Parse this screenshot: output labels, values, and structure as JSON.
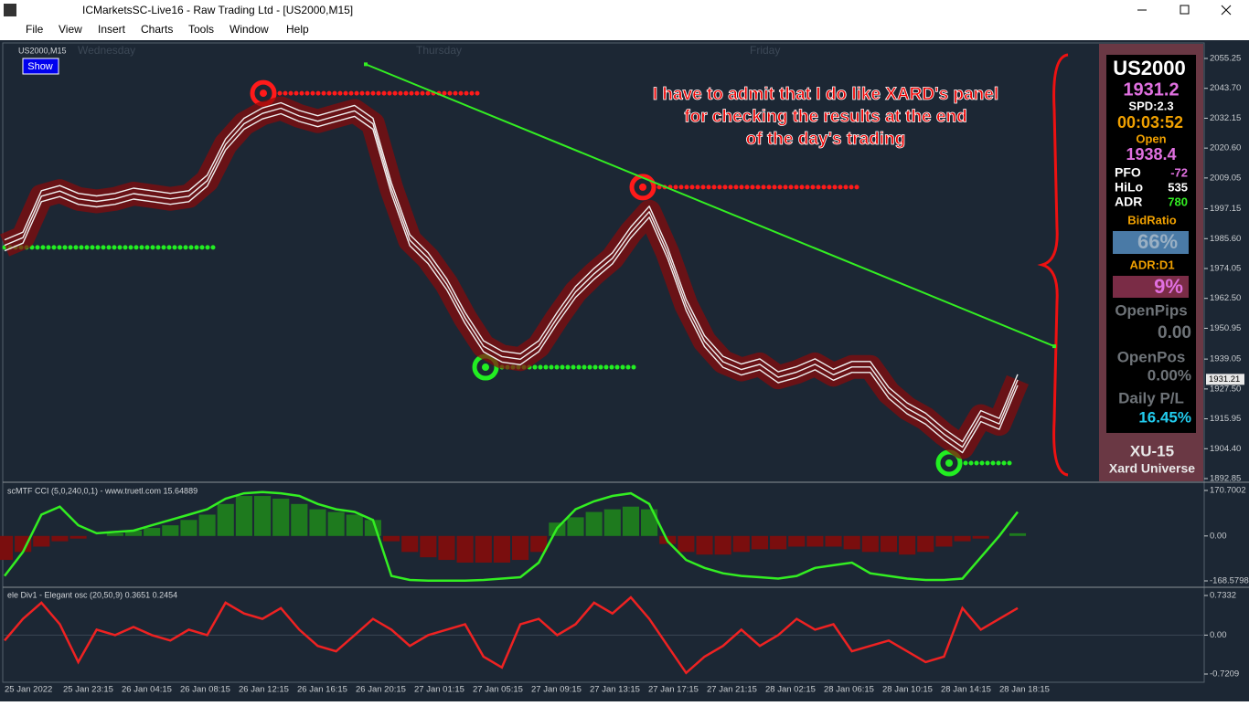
{
  "window": {
    "title": "ICMarketsSC-Live16 - Raw Trading Ltd - [US2000,M15]"
  },
  "menu": [
    "File",
    "View",
    "Insert",
    "Charts",
    "Tools",
    "Window",
    "Help"
  ],
  "chart": {
    "symbol": "US2000,M15",
    "show_button": "Show",
    "days": [
      "Wednesday",
      "Thursday",
      "Friday"
    ],
    "annotation": [
      "I have to admit that I do like XARD's panel",
      "for checking the results at the end",
      "of the day's trading"
    ],
    "ylim": [
      1892.85,
      2055.25
    ],
    "yticks": [
      2055.25,
      {
        "value": 2043.7,
        "label": "2043.70"
      },
      2032.15,
      {
        "value": 2020.6,
        "label": "2020.60"
      },
      2009.05,
      1997.15,
      {
        "value": 1985.6,
        "label": "1985.60"
      },
      1974.05,
      {
        "value": 1962.5,
        "label": "1962.50"
      },
      1950.95,
      1939.05,
      {
        "value": 1927.5,
        "label": "1927.50"
      },
      1915.95,
      {
        "value": 1904.4,
        "label": "1904.40"
      },
      1892.85
    ],
    "current_price": 1931.21,
    "close": [
      1983,
      1986,
      2002,
      2004,
      2001,
      2000,
      2001,
      2003,
      2002,
      2001,
      2002,
      2008,
      2022,
      2030,
      2034,
      2036,
      2033,
      2031,
      2033,
      2035,
      2030,
      2005,
      1985,
      1978,
      1968,
      1955,
      1944,
      1940,
      1939,
      1944,
      1955,
      1965,
      1972,
      1978,
      1988,
      1996,
      1980,
      1960,
      1946,
      1938,
      1935,
      1937,
      1932,
      1934,
      1937,
      1933,
      1936,
      1936,
      1926,
      1920,
      1916,
      1910,
      1905,
      1917,
      1914,
      1931
    ],
    "levels": [
      {
        "value": 2041.8,
        "color": "#ff1a1a"
      },
      {
        "value": 2005.5,
        "color": "#ff1a1a"
      },
      {
        "value": 1982.2,
        "color": "#22ee22"
      },
      {
        "value": 1935.9,
        "color": "#22ee22"
      },
      {
        "value": 1898.85,
        "color": "#22ee22"
      }
    ],
    "trendline": [
      2053,
      1944
    ],
    "x_labels": [
      "25 Jan 2022",
      "25 Jan 23:15",
      "26 Jan 04:15",
      "26 Jan 08:15",
      "26 Jan 12:15",
      "26 Jan 16:15",
      "26 Jan 20:15",
      "27 Jan 01:15",
      "27 Jan 05:15",
      "27 Jan 09:15",
      "27 Jan 13:15",
      "27 Jan 17:15",
      "27 Jan 21:15",
      "28 Jan 02:15",
      "28 Jan 06:15",
      "28 Jan 10:15",
      "28 Jan 14:15",
      "28 Jan 18:15"
    ]
  },
  "panel": {
    "symbol": "US2000",
    "bid": "1931.2",
    "spread": "SPD:2.3",
    "timer": "00:03:52",
    "open_label": "Open",
    "open": "1938.4",
    "rows": [
      [
        "PFO",
        "-72"
      ],
      [
        "HiLo",
        "535"
      ],
      [
        "ADR",
        "780"
      ]
    ],
    "bid_ratio_label": "BidRatio",
    "bid_ratio": "66%",
    "adr_label": "ADR:D1",
    "adr_pct": "9%",
    "open_pips_label": "OpenPips",
    "open_pips": "0.00",
    "open_pos_label": "OpenPos",
    "open_pos": "0.00%",
    "daily_label": "Daily P/L",
    "daily": "16.45%",
    "footer": [
      "XU-15",
      "Xard Universe"
    ]
  },
  "cci": {
    "label": "scMTF CCI (5,0,240,0,1) - www.truetl.com 15.64889",
    "ylim": [
      -168.5798,
      170.7002
    ],
    "yticks": [
      170.7002,
      {
        "value": 0,
        "label": "0.00"
      },
      -168.5798
    ],
    "line": [
      -150,
      -60,
      80,
      110,
      40,
      10,
      15,
      20,
      40,
      60,
      80,
      100,
      140,
      160,
      165,
      160,
      150,
      120,
      100,
      90,
      60,
      -150,
      -165,
      -168,
      -168,
      -168,
      -165,
      -160,
      -155,
      -100,
      30,
      100,
      130,
      150,
      160,
      120,
      -20,
      -90,
      -120,
      -140,
      -150,
      -155,
      -160,
      -150,
      -120,
      -110,
      -100,
      -140,
      -150,
      -160,
      -165,
      -165,
      -160,
      -80,
      0,
      90
    ],
    "histogram": [
      -90,
      -60,
      -40,
      -20,
      -10,
      0,
      10,
      20,
      30,
      40,
      60,
      80,
      120,
      150,
      150,
      140,
      120,
      100,
      90,
      80,
      60,
      -20,
      -60,
      -80,
      -90,
      -100,
      -100,
      -100,
      -90,
      -60,
      50,
      70,
      90,
      100,
      110,
      100,
      -30,
      -60,
      -70,
      -70,
      -60,
      -50,
      -50,
      -40,
      -40,
      -40,
      -50,
      -60,
      -60,
      -70,
      -60,
      -40,
      -20,
      -10,
      0,
      10
    ]
  },
  "osc": {
    "label": "ele Div1 - Elegant osc (20,50,9) 0.3651 0.2454",
    "ylim": [
      -0.7209,
      0.7332
    ],
    "yticks": [
      0.7332,
      {
        "value": 0,
        "label": "0.00"
      },
      -0.7209
    ],
    "line": [
      -0.1,
      0.3,
      0.6,
      0.2,
      -0.5,
      0.1,
      0.0,
      0.15,
      0.0,
      -0.1,
      0.1,
      0.0,
      0.6,
      0.4,
      0.3,
      0.5,
      0.1,
      -0.2,
      -0.3,
      0.0,
      0.3,
      0.1,
      -0.2,
      0.0,
      0.1,
      0.2,
      -0.4,
      -0.6,
      0.2,
      0.3,
      0.0,
      0.2,
      0.6,
      0.4,
      0.7,
      0.3,
      -0.2,
      -0.7,
      -0.4,
      -0.2,
      0.1,
      -0.2,
      0.0,
      0.3,
      0.1,
      0.2,
      -0.3,
      -0.2,
      -0.1,
      -0.3,
      -0.5,
      -0.4,
      0.5,
      0.1,
      0.3,
      0.5
    ]
  }
}
